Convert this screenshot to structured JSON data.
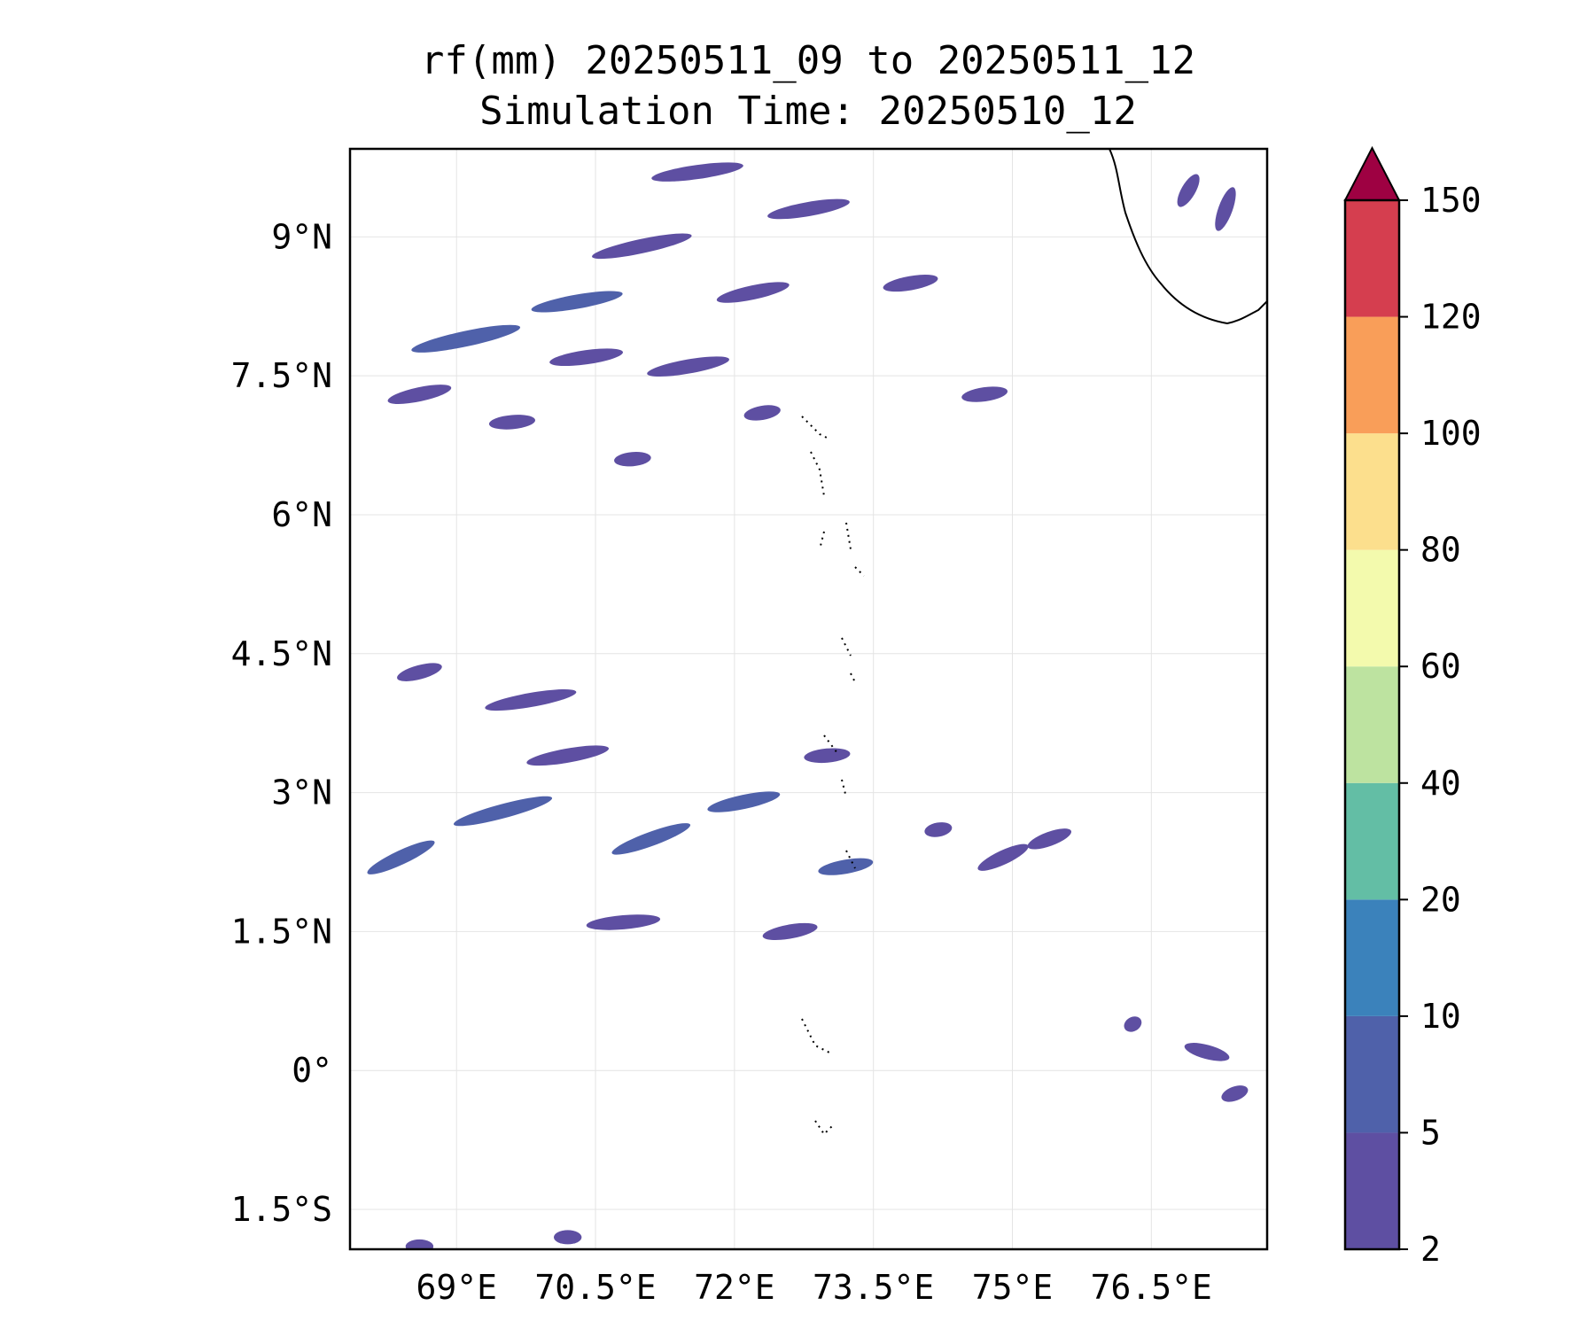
{
  "title": {
    "line1": "rf(mm) 20250511_09 to 20250511_12",
    "line2": "Simulation Time: 20250510_12"
  },
  "map": {
    "extent": {
      "lon_min": 67.85,
      "lon_max": 77.75,
      "lat_min": -1.93,
      "lat_max": 9.95
    },
    "x_ticks": [
      {
        "value": 69.0,
        "label": "69°E"
      },
      {
        "value": 70.5,
        "label": "70.5°E"
      },
      {
        "value": 72.0,
        "label": "72°E"
      },
      {
        "value": 73.5,
        "label": "73.5°E"
      },
      {
        "value": 75.0,
        "label": "75°E"
      },
      {
        "value": 76.5,
        "label": "76.5°E"
      }
    ],
    "y_ticks": [
      {
        "value": 9.0,
        "label": "9°N"
      },
      {
        "value": 7.5,
        "label": "7.5°N"
      },
      {
        "value": 6.0,
        "label": "6°N"
      },
      {
        "value": 4.5,
        "label": "4.5°N"
      },
      {
        "value": 3.0,
        "label": "3°N"
      },
      {
        "value": 1.5,
        "label": "1.5°N"
      },
      {
        "value": 0.0,
        "label": "0°"
      },
      {
        "value": -1.5,
        "label": "1.5°S"
      }
    ],
    "gridlines": true,
    "coastline_color": "#000000"
  },
  "colorbar": {
    "levels": [
      "2",
      "5",
      "10",
      "20",
      "40",
      "60",
      "80",
      "100",
      "120",
      "150"
    ],
    "colors": [
      "#5e4fa2",
      "#4f61aa",
      "#3b82bb",
      "#63bea5",
      "#bde3a0",
      "#f3faad",
      "#fcdf8d",
      "#f99e59",
      "#d53e4f"
    ],
    "extend_color": "#9e0142",
    "extend": "max"
  },
  "rain_blobs": [
    {
      "lon": 69.1,
      "lat": 7.9,
      "len": 1.2,
      "ang": -12,
      "level": 1
    },
    {
      "lon": 70.3,
      "lat": 8.3,
      "len": 1.0,
      "ang": -10,
      "level": 1
    },
    {
      "lon": 71.0,
      "lat": 8.9,
      "len": 1.1,
      "ang": -12,
      "level": 0
    },
    {
      "lon": 70.4,
      "lat": 7.7,
      "len": 0.8,
      "ang": -8,
      "level": 0
    },
    {
      "lon": 71.5,
      "lat": 7.6,
      "len": 0.9,
      "ang": -10,
      "level": 0
    },
    {
      "lon": 72.2,
      "lat": 8.4,
      "len": 0.8,
      "ang": -12,
      "level": 0
    },
    {
      "lon": 72.8,
      "lat": 9.3,
      "len": 0.9,
      "ang": -10,
      "level": 0
    },
    {
      "lon": 71.6,
      "lat": 9.7,
      "len": 1.0,
      "ang": -8,
      "level": 0
    },
    {
      "lon": 68.6,
      "lat": 7.3,
      "len": 0.7,
      "ang": -12,
      "level": 0
    },
    {
      "lon": 69.6,
      "lat": 7.0,
      "len": 0.5,
      "ang": -5,
      "level": 0
    },
    {
      "lon": 70.9,
      "lat": 6.6,
      "len": 0.4,
      "ang": -5,
      "level": 0
    },
    {
      "lon": 72.3,
      "lat": 7.1,
      "len": 0.4,
      "ang": -10,
      "level": 0
    },
    {
      "lon": 74.7,
      "lat": 7.3,
      "len": 0.5,
      "ang": -8,
      "level": 0
    },
    {
      "lon": 73.9,
      "lat": 8.5,
      "len": 0.6,
      "ang": -10,
      "level": 0
    },
    {
      "lon": 76.9,
      "lat": 9.5,
      "len": 0.4,
      "ang": -60,
      "level": 0
    },
    {
      "lon": 77.3,
      "lat": 9.3,
      "len": 0.5,
      "ang": -70,
      "level": 0
    },
    {
      "lon": 69.5,
      "lat": 2.8,
      "len": 1.1,
      "ang": -15,
      "level": 1
    },
    {
      "lon": 70.2,
      "lat": 3.4,
      "len": 0.9,
      "ang": -10,
      "level": 0
    },
    {
      "lon": 71.1,
      "lat": 2.5,
      "len": 0.9,
      "ang": -20,
      "level": 1
    },
    {
      "lon": 72.1,
      "lat": 2.9,
      "len": 0.8,
      "ang": -12,
      "level": 1
    },
    {
      "lon": 73.2,
      "lat": 2.2,
      "len": 0.6,
      "ang": -10,
      "level": 1
    },
    {
      "lon": 73.0,
      "lat": 3.4,
      "len": 0.5,
      "ang": -5,
      "level": 0
    },
    {
      "lon": 68.4,
      "lat": 2.3,
      "len": 0.8,
      "ang": -25,
      "level": 1
    },
    {
      "lon": 69.8,
      "lat": 4.0,
      "len": 1.0,
      "ang": -10,
      "level": 0
    },
    {
      "lon": 68.6,
      "lat": 4.3,
      "len": 0.5,
      "ang": -15,
      "level": 0
    },
    {
      "lon": 70.8,
      "lat": 1.6,
      "len": 0.8,
      "ang": -5,
      "level": 0
    },
    {
      "lon": 72.6,
      "lat": 1.5,
      "len": 0.6,
      "ang": -10,
      "level": 0
    },
    {
      "lon": 74.9,
      "lat": 2.3,
      "len": 0.6,
      "ang": -25,
      "level": 0
    },
    {
      "lon": 75.4,
      "lat": 2.5,
      "len": 0.5,
      "ang": -20,
      "level": 0
    },
    {
      "lon": 74.2,
      "lat": 2.6,
      "len": 0.3,
      "ang": -10,
      "level": 0
    },
    {
      "lon": 77.1,
      "lat": 0.2,
      "len": 0.5,
      "ang": 15,
      "level": 0
    },
    {
      "lon": 77.4,
      "lat": -0.25,
      "len": 0.3,
      "ang": -20,
      "level": 0
    },
    {
      "lon": 76.3,
      "lat": 0.5,
      "len": 0.2,
      "ang": -30,
      "level": 0
    },
    {
      "lon": 70.2,
      "lat": -1.8,
      "len": 0.3,
      "ang": 0,
      "level": 0
    },
    {
      "lon": 68.6,
      "lat": -1.9,
      "len": 0.3,
      "ang": 0,
      "level": 0
    }
  ]
}
